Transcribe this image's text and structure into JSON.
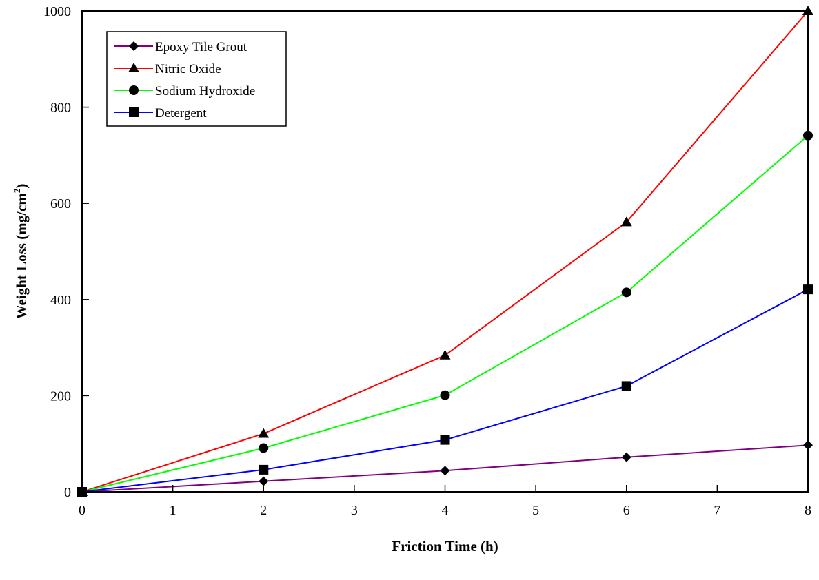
{
  "chart_data": {
    "type": "line",
    "title": "",
    "xlabel": "Friction Time (h)",
    "ylabel_main": "Weight Loss (mg/cm",
    "ylabel_sup": "2",
    "ylabel_close": ")",
    "xlim": [
      0,
      8
    ],
    "ylim": [
      0,
      1000
    ],
    "x_ticks": [
      "0",
      "1",
      "2",
      "3",
      "4",
      "5",
      "6",
      "7",
      "8"
    ],
    "y_ticks": [
      "0",
      "200",
      "400",
      "600",
      "800",
      "1000"
    ],
    "grid": false,
    "legend_position": "top-left",
    "x": [
      0,
      2,
      4,
      6,
      8
    ],
    "series": [
      {
        "name": "Epoxy Tile Grout",
        "color": "#800080",
        "marker": "diamond",
        "values": [
          0,
          22,
          44,
          72,
          97
        ]
      },
      {
        "name": "Nitric Oxide",
        "color": "#ff0000",
        "marker": "triangle",
        "values": [
          0,
          121,
          284,
          561,
          1000
        ]
      },
      {
        "name": "Sodium Hydroxide",
        "color": "#00ff00",
        "marker": "circle",
        "values": [
          0,
          91,
          201,
          415,
          741
        ]
      },
      {
        "name": "Detergent",
        "color": "#0000ff",
        "marker": "square",
        "values": [
          0,
          46,
          108,
          220,
          421
        ]
      }
    ]
  }
}
